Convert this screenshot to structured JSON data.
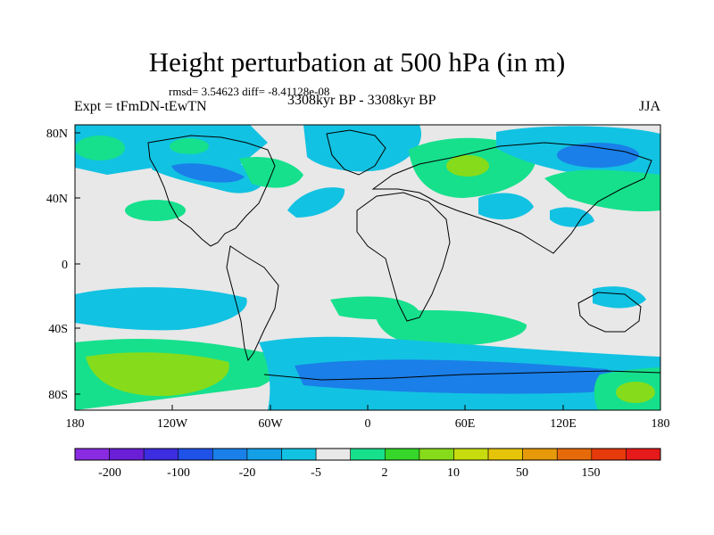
{
  "title": "Height perturbation at 500 hPa (in m)",
  "stats": "rmsd= 3.54623 diff= -8.41128e-08",
  "left_label": "Expt = tFmDN-tEwTN",
  "center_label": "3308kyr BP - 3308kyr BP",
  "right_label": "JJA",
  "lat_ticks": [
    "80N",
    "40N",
    "0",
    "40S",
    "80S"
  ],
  "lon_ticks": [
    "180",
    "120W",
    "60W",
    "0",
    "60E",
    "120E",
    "180"
  ],
  "colorbar": {
    "labels": [
      "-200",
      "-100",
      "-20",
      "-5",
      "2",
      "10",
      "50",
      "150"
    ],
    "colors": [
      "#8a2be2",
      "#6a1fd6",
      "#3c2de0",
      "#1f52e6",
      "#1a7fe8",
      "#14a0e6",
      "#12c2e2",
      "#e8e8e8",
      "#16e08c",
      "#36d62a",
      "#86dc1a",
      "#c6dc0e",
      "#e6c40a",
      "#e69a0a",
      "#e66a0a",
      "#e63a0a",
      "#e61a1a"
    ]
  },
  "map_colors": {
    "neutral": "#e8e8e8",
    "light_blue": "#12c2e2",
    "mid_blue": "#1a7fe8",
    "green": "#16e08c",
    "bright_green": "#36d62a",
    "yellow_green": "#86dc1a",
    "yellow": "#c6dc0e"
  }
}
